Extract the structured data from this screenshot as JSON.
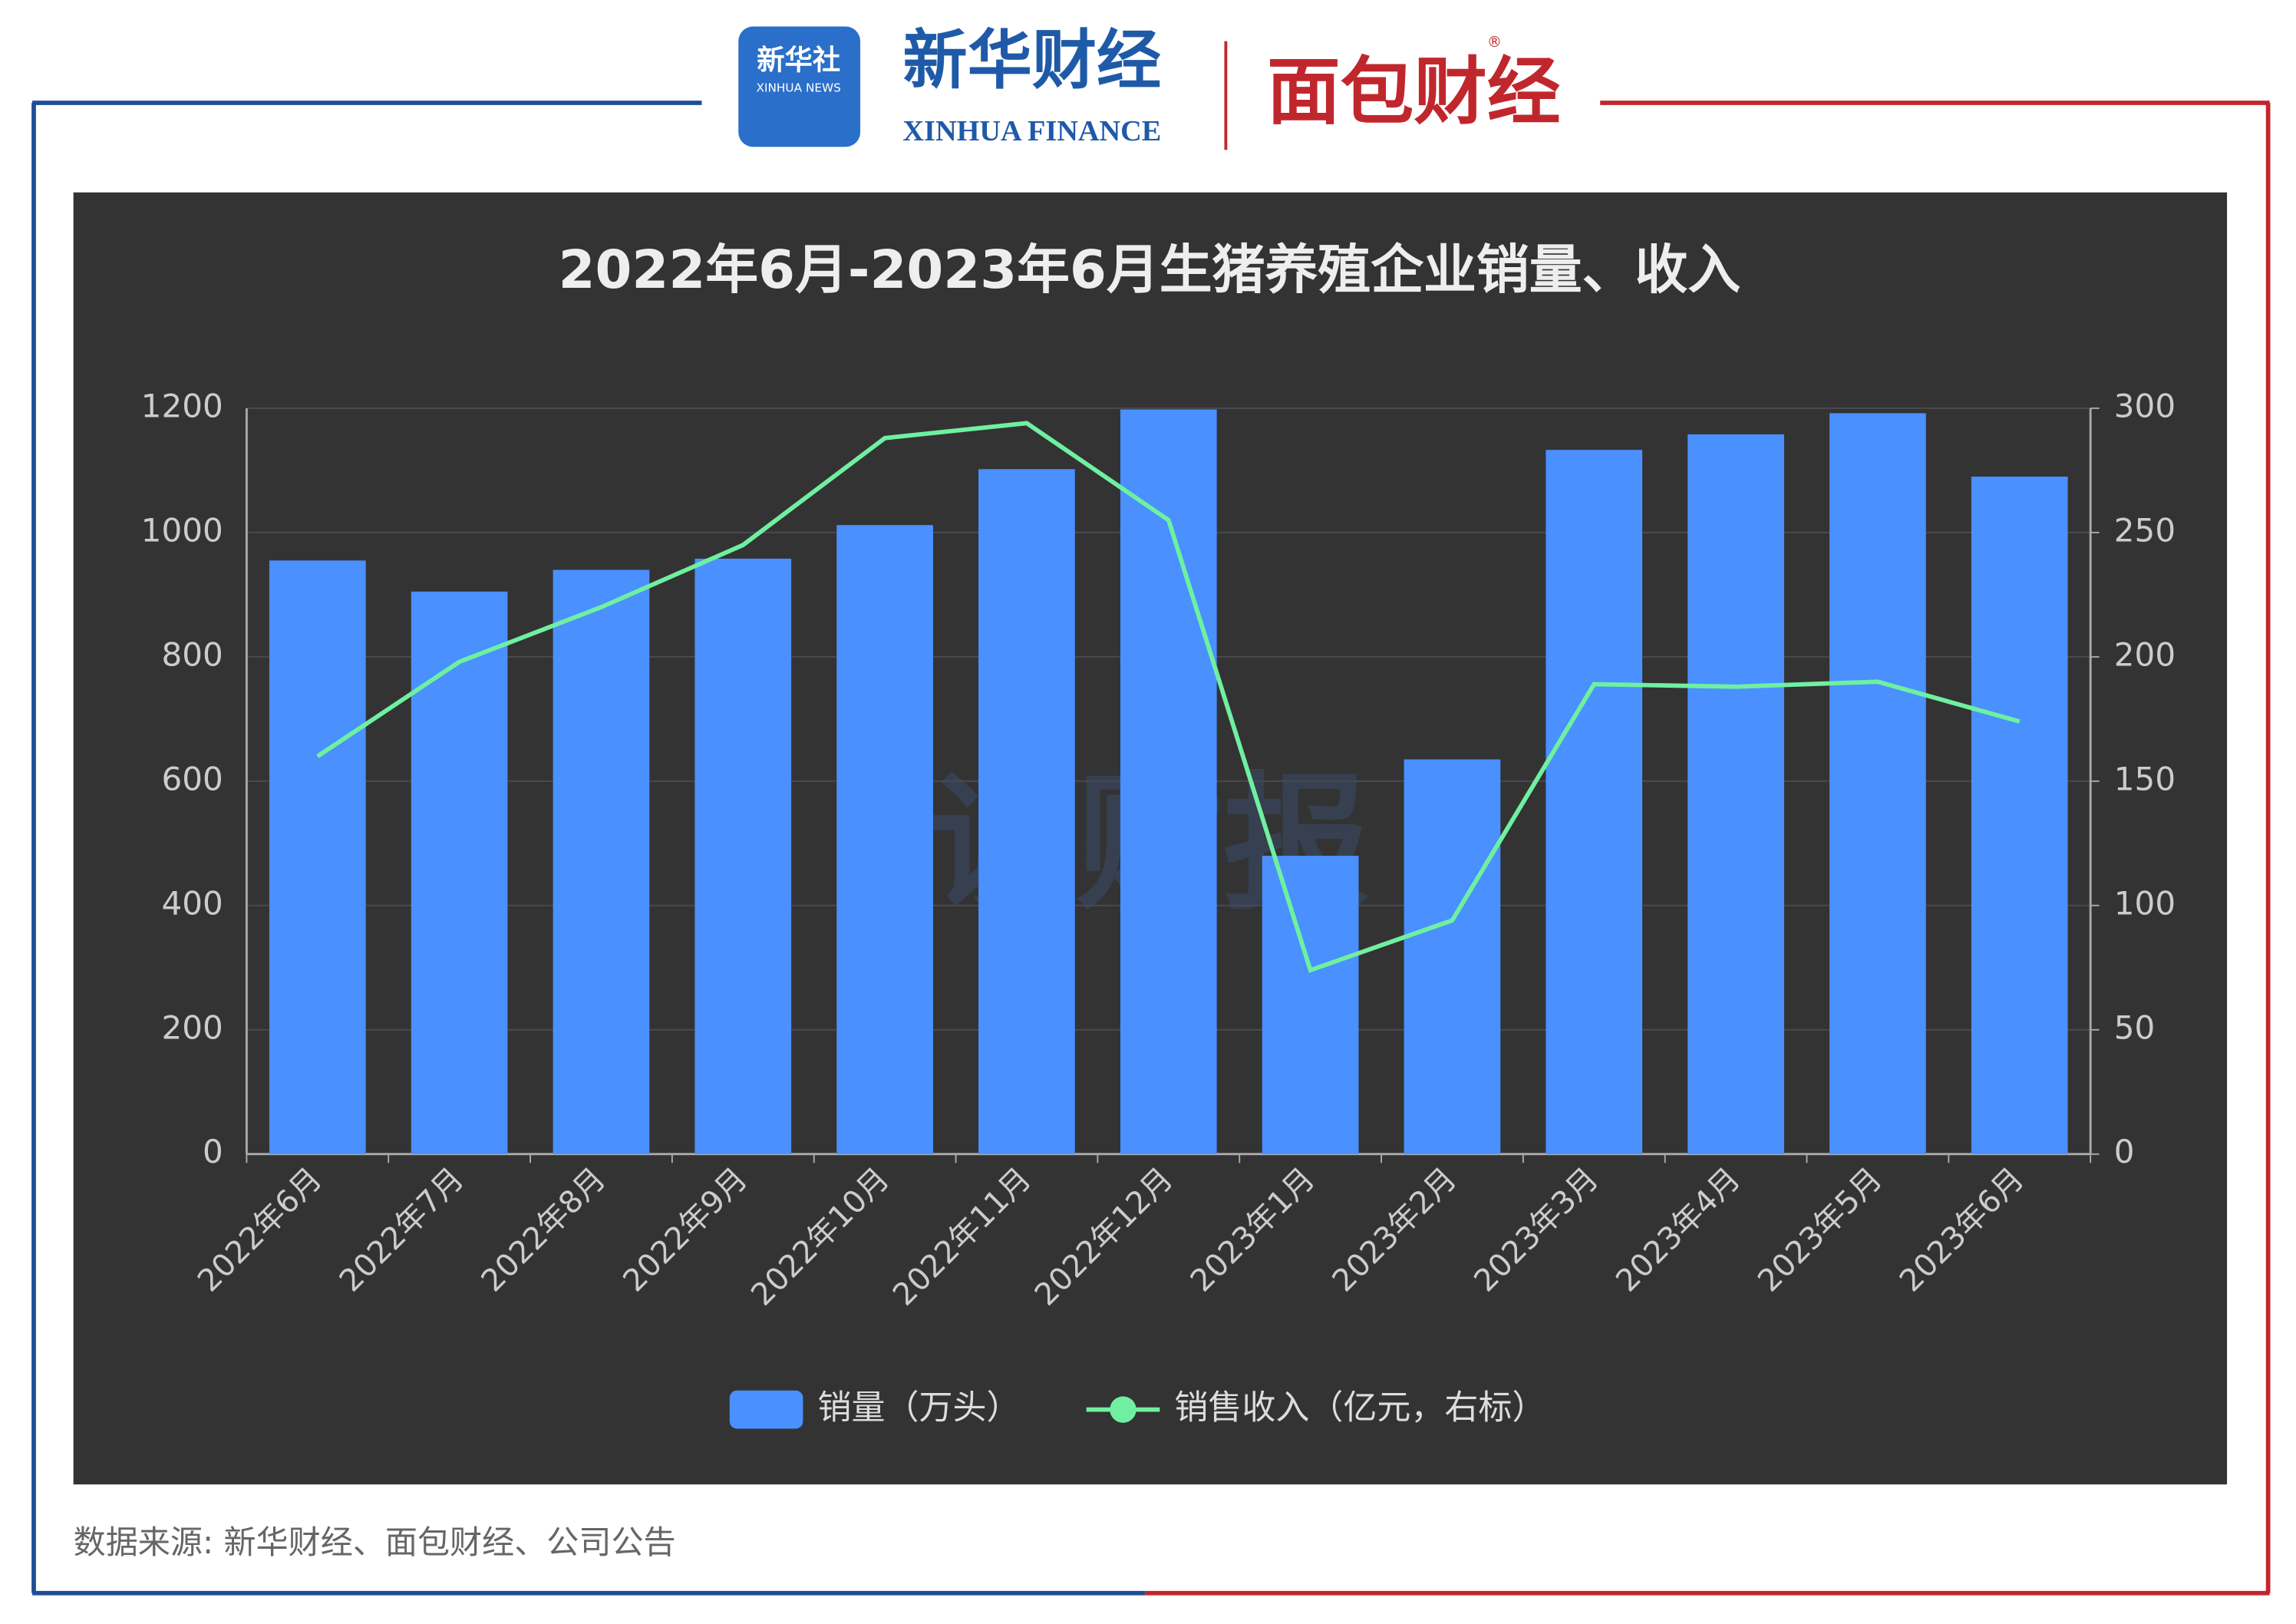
{
  "header": {
    "logo1_text": "新华社",
    "logo1_sub": "XINHUA NEWS",
    "logo2_text": "新华财经",
    "logo2_sub": "XINHUA FINANCE",
    "logo3_text": "面包财经",
    "logo3_mark": "®"
  },
  "watermark": "读财报",
  "source": "数据来源: 新华财经、面包财经、公司公告",
  "chart_data": {
    "type": "bar",
    "title": "2022年6月-2023年6月生猪养殖企业销量、收入",
    "categories": [
      "2022年6月",
      "2022年7月",
      "2022年8月",
      "2022年9月",
      "2022年10月",
      "2022年11月",
      "2022年12月",
      "2023年1月",
      "2023年2月",
      "2023年3月",
      "2023年4月",
      "2023年5月",
      "2023年6月"
    ],
    "series": [
      {
        "name": "销量（万头）",
        "type": "bar",
        "color": "#4a90ff",
        "values": [
          955,
          905,
          940,
          958,
          1012,
          1102,
          1198,
          480,
          635,
          1133,
          1158,
          1192,
          1090
        ]
      },
      {
        "name": "销售收入（亿元，右标）",
        "type": "line",
        "axis": "y2",
        "color": "#6ff0a0",
        "values": [
          160,
          198,
          220,
          245,
          288,
          294,
          255,
          74,
          94,
          189,
          188,
          190,
          174
        ]
      }
    ],
    "ylim": [
      0,
      1200
    ],
    "yticks": [
      0,
      200,
      400,
      600,
      800,
      1000,
      1200
    ],
    "y2lim": [
      0,
      300
    ],
    "y2ticks": [
      0,
      50,
      100,
      150,
      200,
      250,
      300
    ],
    "grid": true
  }
}
